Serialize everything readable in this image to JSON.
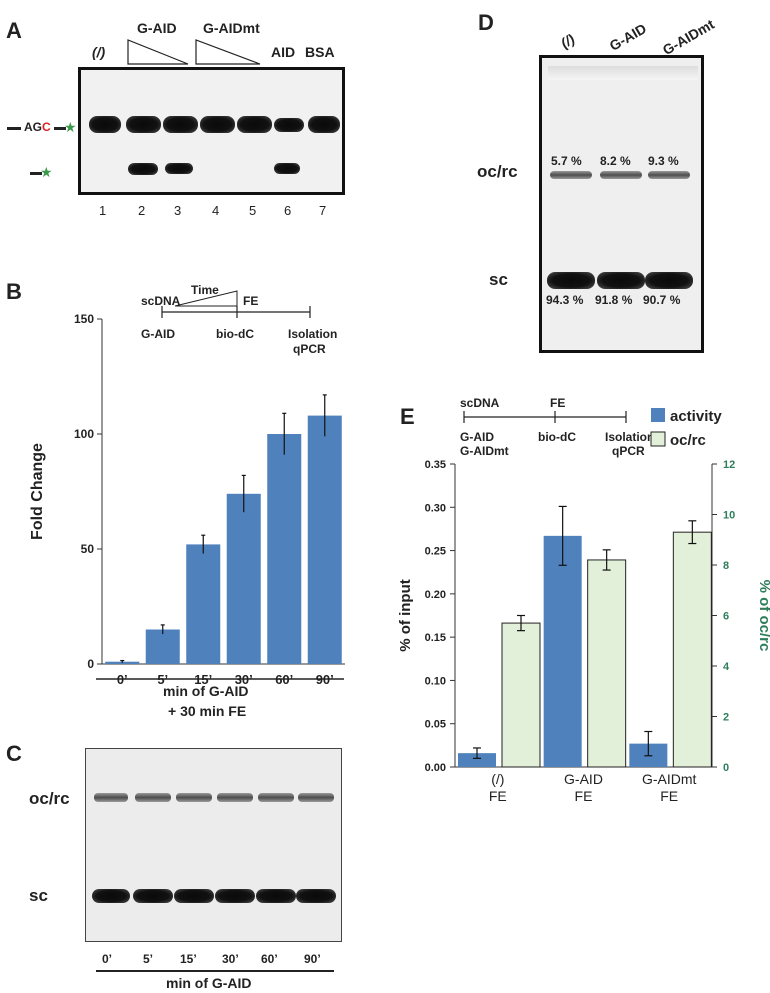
{
  "panels": {
    "a": "A",
    "b": "B",
    "c": "C",
    "d": "D",
    "e": "E"
  },
  "panel_a": {
    "headers": {
      "none": "(/)",
      "gaid": "G-AID",
      "gaidmt": "G-AIDmt",
      "aid": "AID",
      "bsa": "BSA"
    },
    "marker_agc": {
      "ag": "AG",
      "c": "C"
    },
    "lanes": [
      "1",
      "2",
      "3",
      "4",
      "5",
      "6",
      "7"
    ]
  },
  "panel_b_scheme": {
    "scdna": "scDNA",
    "time": "Time",
    "fe": "FE",
    "gaid": "G-AID",
    "biodc": "bio-dC",
    "isolation": "Isolation",
    "qpcr": "qPCR",
    "xlabel_line1": "min of G-AID",
    "xlabel_line2": "+ 30 min FE"
  },
  "panel_c": {
    "ocrc": "oc/rc",
    "sc": "sc",
    "lanes": [
      "0’",
      "5’",
      "15’",
      "30’",
      "60’",
      "90’"
    ],
    "xlabel": "min of G-AID"
  },
  "panel_d": {
    "lanes": [
      "(/)",
      "G-AID",
      "G-AIDmt"
    ],
    "ocrc": "oc/rc",
    "sc": "sc",
    "ocrc_pct": [
      "5.7 %",
      "8.2 %",
      "9.3 %"
    ],
    "sc_pct": [
      "94.3 %",
      "91.8 %",
      "90.7 %"
    ]
  },
  "panel_e_scheme": {
    "scdna": "scDNA",
    "fe": "FE",
    "gaid": "G-AID",
    "gaidmt": "G-AIDmt",
    "biodc": "bio-dC",
    "isolation": "Isolation",
    "qpcr": "qPCR"
  },
  "chart_data": [
    {
      "type": "bar",
      "panel": "B",
      "categories": [
        "0’",
        "5’",
        "15’",
        "30’",
        "60’",
        "90’"
      ],
      "values": [
        1,
        15,
        52,
        74,
        100,
        108
      ],
      "errors": [
        0.5,
        2,
        4,
        8,
        9,
        9
      ],
      "ylabel": "Fold Change",
      "ylim": [
        0,
        150
      ],
      "yticks": [
        0,
        50,
        100,
        150
      ],
      "color": "#4f81bd",
      "grid": false
    },
    {
      "type": "bar",
      "panel": "E",
      "categories": [
        "(/)\nFE",
        "G-AID\nFE",
        "G-AIDmt\nFE"
      ],
      "series": [
        {
          "name": "activity",
          "axis": "left",
          "values": [
            0.016,
            0.267,
            0.027
          ],
          "errors": [
            0.006,
            0.034,
            0.014
          ],
          "color": "#4f81bd"
        },
        {
          "name": "oc/rc",
          "axis": "right",
          "values": [
            5.7,
            8.2,
            9.3
          ],
          "errors": [
            0.3,
            0.4,
            0.45
          ],
          "color": "#e2efd9"
        }
      ],
      "ylabel": "% of input",
      "ylim": [
        0,
        0.35
      ],
      "yticks": [
        "0.00",
        "0.05",
        "0.10",
        "0.15",
        "0.20",
        "0.25",
        "0.30",
        "0.35"
      ],
      "y2label": "% of oc/rc",
      "y2lim": [
        0,
        12
      ],
      "y2ticks": [
        "0",
        "2",
        "4",
        "6",
        "8",
        "10",
        "12"
      ],
      "y2color": "#2e7d5b",
      "legend_position": "top-right",
      "grid": false
    }
  ]
}
